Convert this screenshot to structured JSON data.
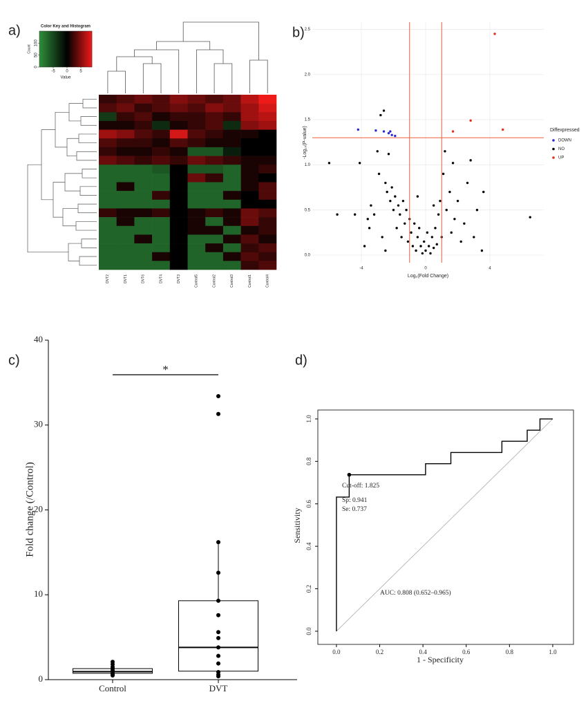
{
  "chart_data": [
    {
      "type": "heatmap",
      "panel_label": "a)",
      "columns": [
        "DVT2",
        "DVT1",
        "DVT6",
        "DVT4",
        "DVT3",
        "Control5",
        "Control2",
        "Control3",
        "Control1",
        "Control4"
      ],
      "rows": [
        [
          2,
          3,
          4,
          3,
          5,
          4,
          3,
          4,
          7,
          9
        ],
        [
          3,
          4,
          2,
          3,
          4,
          3,
          5,
          4,
          6,
          8
        ],
        [
          -4,
          2,
          3,
          1,
          2,
          2,
          3,
          2,
          6,
          7
        ],
        [
          1,
          1,
          2,
          -3,
          1,
          2,
          3,
          -3,
          5,
          6
        ],
        [
          6,
          5,
          3,
          2,
          8,
          3,
          2,
          1,
          1,
          0
        ],
        [
          3,
          2,
          2,
          1,
          3,
          2,
          1,
          1,
          0,
          0
        ],
        [
          2,
          1,
          1,
          2,
          1,
          -6,
          -6,
          -2,
          0,
          0
        ],
        [
          4,
          3,
          2,
          3,
          2,
          4,
          3,
          2,
          1,
          1
        ],
        [
          -7,
          -7,
          -7,
          -6,
          0,
          -6,
          -6,
          -7,
          1,
          2
        ],
        [
          -7,
          -7,
          -7,
          -7,
          0,
          4,
          2,
          -7,
          1,
          0
        ],
        [
          -7,
          1,
          -7,
          -7,
          0,
          -7,
          -7,
          -7,
          1,
          3
        ],
        [
          -7,
          -7,
          -7,
          2,
          0,
          -7,
          -7,
          1,
          0,
          3
        ],
        [
          -7,
          -7,
          -7,
          -7,
          0,
          -7,
          -7,
          -7,
          0,
          0
        ],
        [
          2,
          1,
          1,
          2,
          0,
          1,
          2,
          1,
          4,
          3
        ],
        [
          -7,
          1,
          -7,
          -7,
          0,
          1,
          -7,
          1,
          4,
          2
        ],
        [
          -7,
          -7,
          -7,
          -7,
          0,
          1,
          1,
          -7,
          1,
          2
        ],
        [
          -7,
          -7,
          1,
          -7,
          0,
          -7,
          -7,
          1,
          3,
          1
        ],
        [
          -7,
          -7,
          -7,
          -7,
          0,
          -7,
          1,
          -7,
          2,
          3
        ],
        [
          -7,
          -7,
          -7,
          1,
          0,
          -7,
          -7,
          1,
          3,
          2
        ],
        [
          -7,
          -7,
          -7,
          -7,
          0,
          -7,
          -7,
          -7,
          2,
          3
        ]
      ],
      "colors": {
        "low": "#2f8f3a",
        "mid": "#000000",
        "high": "#ee1a1a"
      },
      "key": {
        "title": "Color Key and Histogram",
        "xlabel": "Value",
        "ylabel": "Count",
        "xlim": [
          -10,
          9
        ],
        "xticks": [
          -5,
          0,
          5
        ],
        "ylim": [
          0,
          150
        ],
        "yticks": [
          0,
          50,
          100
        ]
      }
    },
    {
      "type": "scatter",
      "panel_label": "b)",
      "xlabel": "Log₂(Fold Change)",
      "ylabel": "-Log₁₀(P-value)",
      "legend_title": "Diffexpressed",
      "xlim": [
        -7.05,
        7.35
      ],
      "xticks": [
        -4,
        0,
        4
      ],
      "ylim": [
        -0.084,
        2.58
      ],
      "yticks": [
        {
          "value": 0,
          "label": "0.0"
        },
        {
          "value": 0.5,
          "label": "0.5"
        },
        {
          "value": 1,
          "label": "1.0"
        },
        {
          "value": 1.5,
          "label": "1.5"
        },
        {
          "value": 2,
          "label": "2.0"
        },
        {
          "value": 2.5,
          "label": "2.5"
        }
      ],
      "grid": true,
      "ref_color": "#e8603c",
      "vlines": [
        -1,
        1
      ],
      "hlines": [
        1.3
      ],
      "series": [
        {
          "name": "DOWN",
          "color": "#2b2bd6",
          "x": [
            -4.2,
            -3.1,
            -2.6,
            -2.3,
            -2.1,
            -1.9,
            -2.2
          ],
          "y": [
            1.39,
            1.38,
            1.37,
            1.35,
            1.33,
            1.32,
            1.37
          ]
        },
        {
          "name": "NO",
          "color": "#000000",
          "x": [
            -6.0,
            -4.4,
            -4.1,
            -3.6,
            -3.4,
            -3.2,
            -3.0,
            -2.9,
            -2.8,
            -2.6,
            -2.5,
            -2.4,
            -2.3,
            -2.2,
            -2.1,
            -2.0,
            -1.9,
            -1.8,
            -1.7,
            -1.6,
            -1.5,
            -1.4,
            -1.3,
            -1.2,
            -1.1,
            -1.0,
            -0.9,
            -0.8,
            -0.7,
            -0.6,
            -0.5,
            -0.4,
            -0.3,
            -0.2,
            -0.1,
            0.0,
            0.1,
            0.2,
            0.3,
            0.4,
            0.5,
            0.6,
            0.7,
            0.8,
            0.9,
            1.0,
            1.1,
            1.2,
            1.3,
            1.5,
            1.6,
            1.7,
            1.8,
            2.0,
            2.2,
            2.4,
            2.6,
            2.8,
            3.0,
            3.2,
            3.5,
            3.6,
            -2.7,
            -3.5,
            -2.5,
            6.5,
            -5.5,
            -3.8,
            0.5,
            -0.5
          ],
          "y": [
            1.02,
            0.45,
            1.02,
            0.4,
            0.55,
            0.45,
            1.15,
            0.9,
            1.55,
            1.6,
            0.8,
            0.7,
            1.12,
            0.6,
            0.75,
            0.5,
            0.65,
            0.3,
            0.55,
            0.45,
            0.2,
            0.6,
            0.35,
            0.5,
            0.15,
            0.4,
            0.25,
            0.1,
            0.35,
            0.05,
            0.2,
            0.3,
            0.1,
            0.02,
            0.15,
            0.05,
            0.25,
            0.1,
            0.02,
            0.2,
            0.08,
            0.3,
            0.12,
            0.45,
            0.6,
            0.2,
            0.9,
            1.15,
            0.5,
            0.7,
            0.25,
            1.02,
            0.4,
            0.6,
            0.15,
            0.35,
            0.8,
            1.05,
            0.2,
            0.5,
            0.05,
            0.7,
            0.2,
            0.3,
            0.05,
            0.42,
            0.45,
            0.1,
            0.55,
            0.65
          ]
        },
        {
          "name": "UP",
          "color": "#e0301e",
          "x": [
            4.3,
            2.8,
            1.7,
            4.8
          ],
          "y": [
            2.45,
            1.49,
            1.37,
            1.39
          ]
        }
      ]
    },
    {
      "type": "box",
      "panel_label": "c)",
      "ylabel": "Fold change (/Control)",
      "annotation": "*",
      "categories": [
        "Control",
        "DVT"
      ],
      "ylim": [
        0,
        40
      ],
      "yticks": [
        0,
        10,
        20,
        30,
        40
      ],
      "boxes": [
        {
          "whislo": 0.5,
          "q1": 0.75,
          "med": 0.95,
          "q3": 1.3,
          "whishi": 2.1
        },
        {
          "whislo": 0.3,
          "q1": 1.0,
          "med": 3.8,
          "q3": 9.3,
          "whishi": 16.2
        }
      ],
      "points": [
        [
          2.1,
          1.8,
          1.5,
          1.3,
          1.1,
          0.9,
          0.7,
          0.6,
          0.5
        ],
        [
          33.4,
          31.3,
          16.2,
          12.6,
          9.3,
          7.6,
          5.6,
          4.9,
          3.8,
          2.8,
          1.9,
          0.9,
          0.6,
          0.4
        ]
      ]
    },
    {
      "type": "line",
      "panel_label": "d)",
      "xlabel": "1 - Specificity",
      "ylabel": "Sensitivity",
      "xlim": [
        -0.086,
        1.096
      ],
      "ylim": [
        -0.062,
        1.042
      ],
      "xticks": [
        {
          "value": 0,
          "label": "0.0"
        },
        {
          "value": 0.2,
          "label": "0.2"
        },
        {
          "value": 0.4,
          "label": "0.4"
        },
        {
          "value": 0.6,
          "label": "0.6"
        },
        {
          "value": 0.8,
          "label": "0.8"
        },
        {
          "value": 1,
          "label": "1.0"
        }
      ],
      "yticks": [
        {
          "value": 0,
          "label": "0.0"
        },
        {
          "value": 0.2,
          "label": "0.2"
        },
        {
          "value": 0.4,
          "label": "0.4"
        },
        {
          "value": 0.6,
          "label": "0.6"
        },
        {
          "value": 0.8,
          "label": "0.8"
        },
        {
          "value": 1,
          "label": "1.0"
        }
      ],
      "diagonal": true,
      "x": [
        0,
        0,
        0.059,
        0.059,
        0.412,
        0.412,
        0.529,
        0.529,
        0.765,
        0.765,
        0.882,
        0.882,
        0.941,
        0.941,
        1
      ],
      "y": [
        0,
        0.632,
        0.632,
        0.737,
        0.737,
        0.789,
        0.789,
        0.842,
        0.842,
        0.895,
        0.895,
        0.947,
        0.947,
        1,
        1
      ],
      "cutoff": {
        "x": 0.059,
        "y": 0.737
      },
      "annotations": [
        "Cut-off: 1.825",
        "Sp: 0.941",
        "Se: 0.737",
        "AUC: 0.808 (0.652–0.965)"
      ]
    }
  ]
}
